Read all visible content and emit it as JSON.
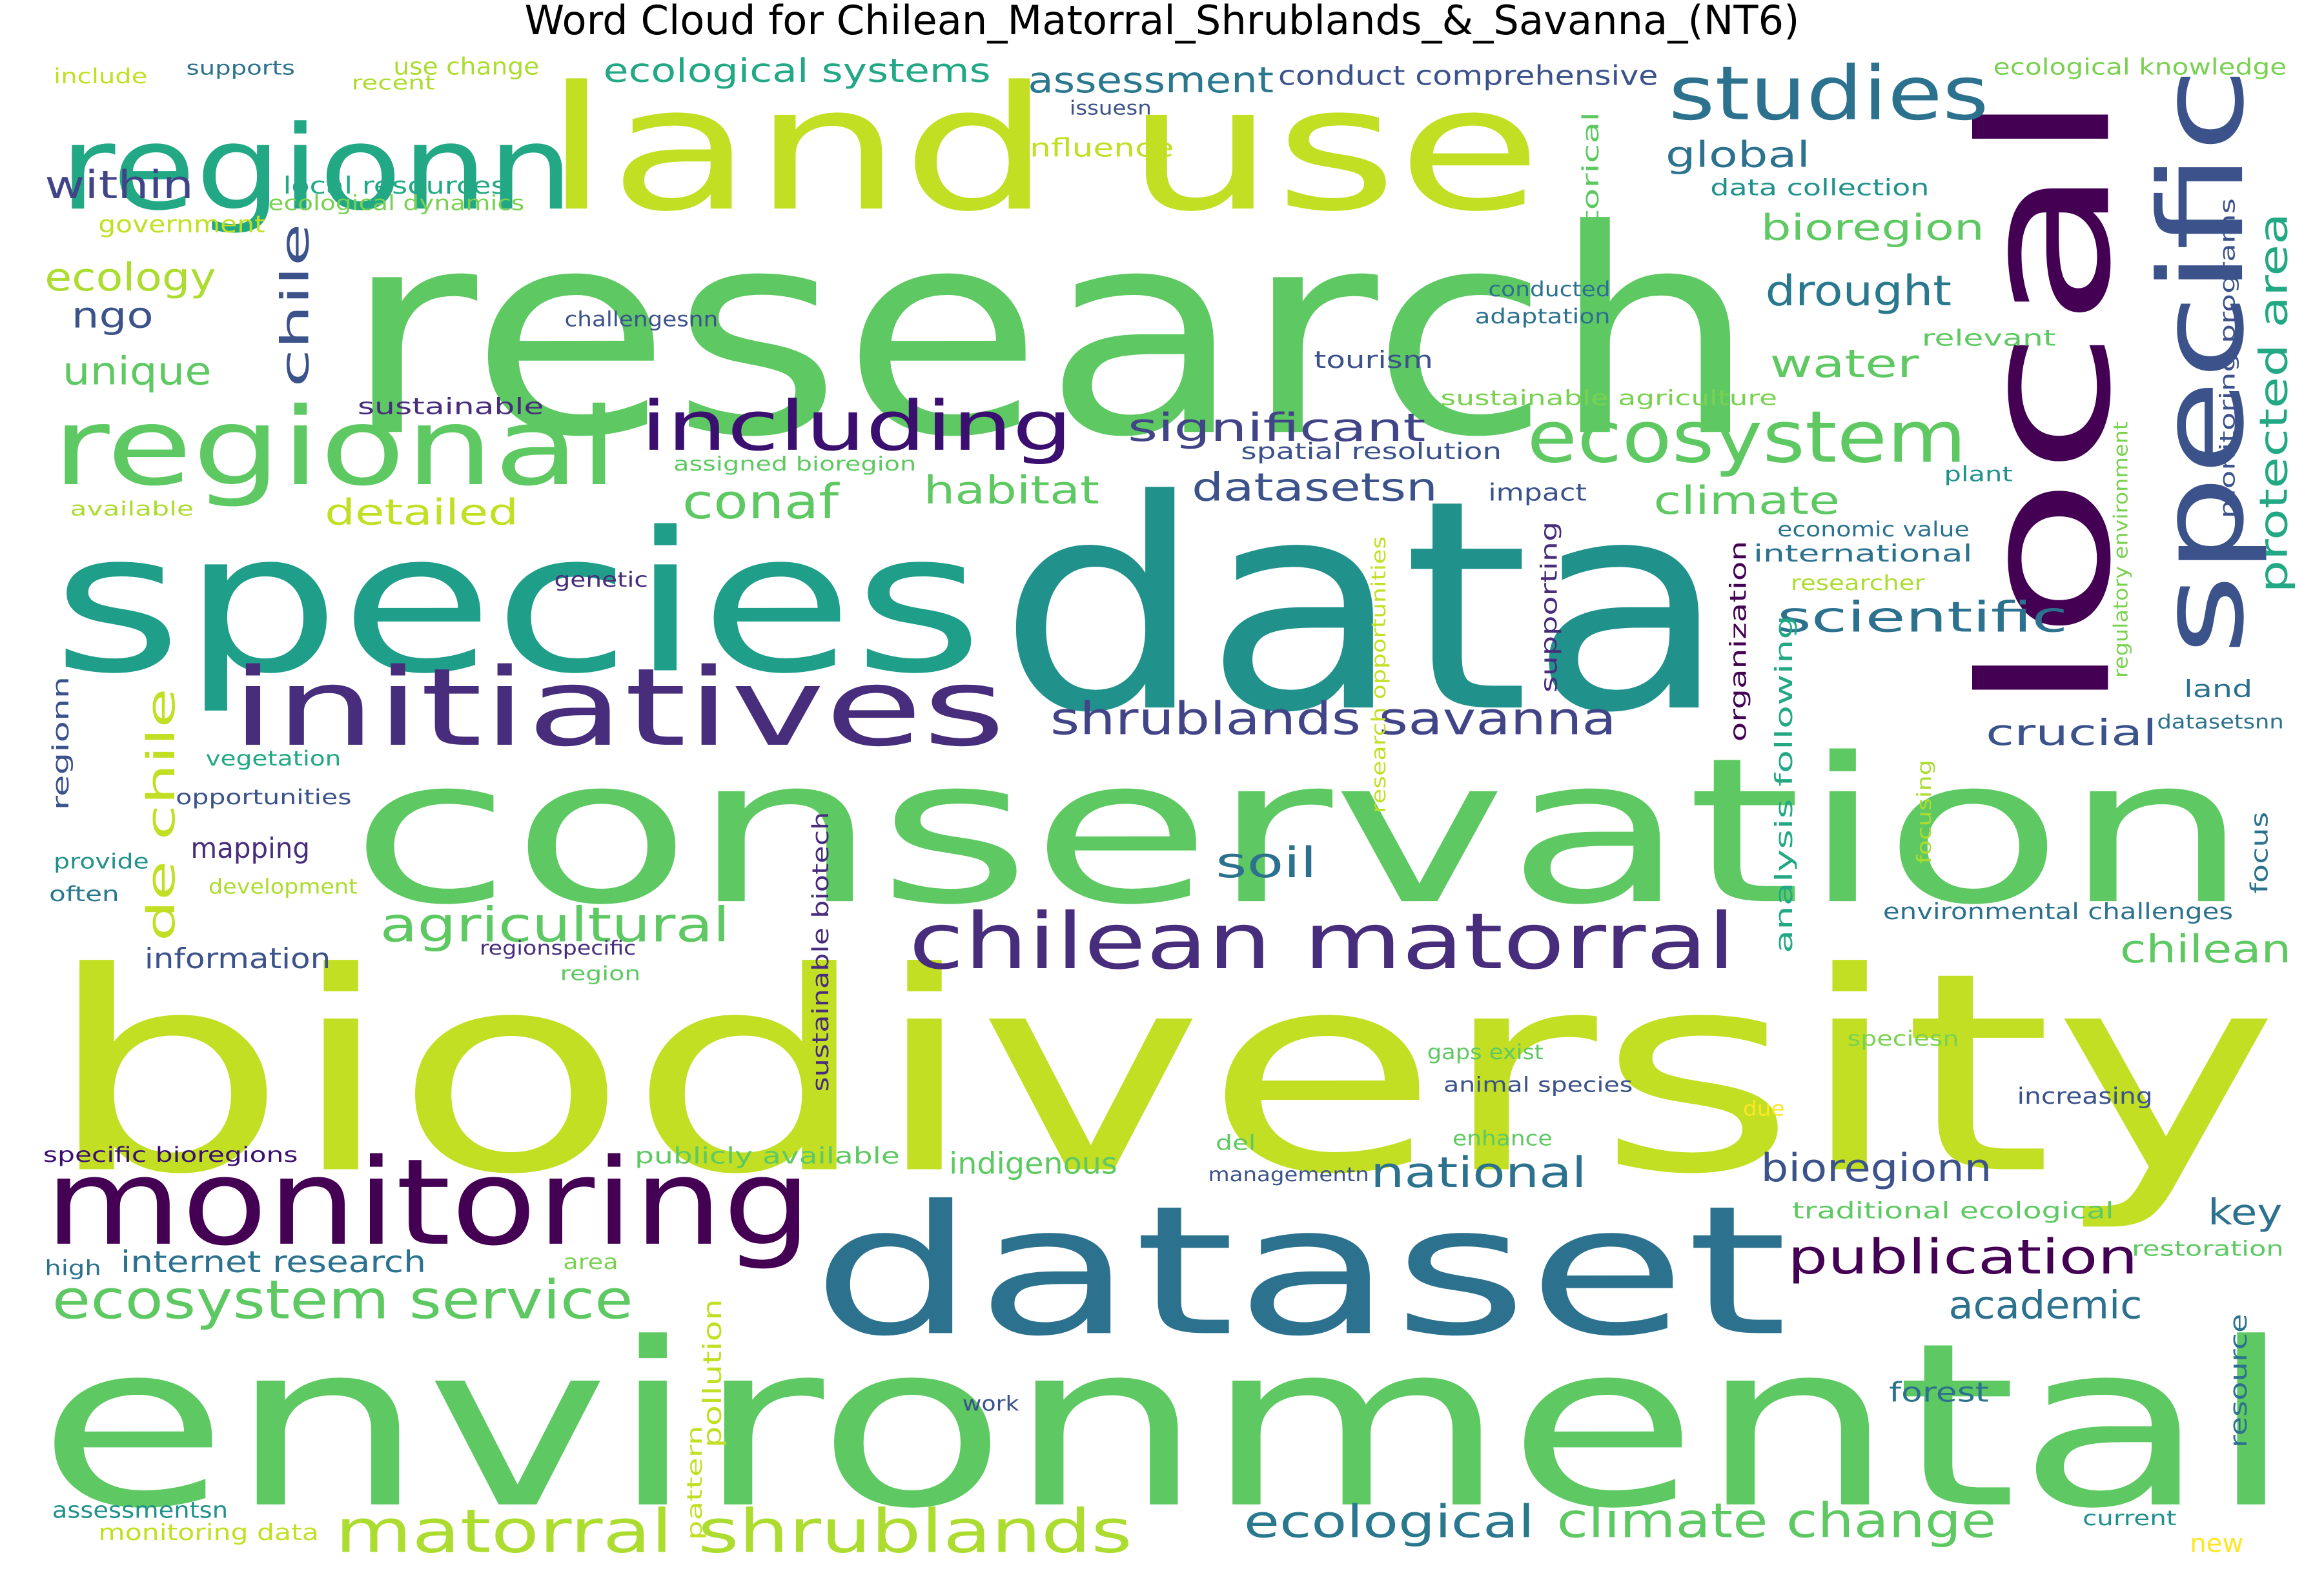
{
  "title": "Word Cloud for Chilean_Matorral_Shrublands_&_Savanna_(NT6)",
  "words": [
    {
      "text": "biodiversity",
      "color": "#c2df23"
    },
    {
      "text": "research",
      "color": "#5ec962"
    },
    {
      "text": "conservation",
      "color": "#5ec962"
    },
    {
      "text": "environmental",
      "color": "#5ec962"
    },
    {
      "text": "data",
      "color": "#21918c"
    },
    {
      "text": "species",
      "color": "#1f9e89"
    },
    {
      "text": "land use",
      "color": "#c2df23"
    },
    {
      "text": "local",
      "color": "#440154"
    },
    {
      "text": "dataset",
      "color": "#2c728e"
    },
    {
      "text": "monitoring",
      "color": "#440154"
    },
    {
      "text": "regionn",
      "color": "#22a884"
    },
    {
      "text": "regional",
      "color": "#5ec962"
    },
    {
      "text": "initiatives",
      "color": "#472d7b"
    },
    {
      "text": "specific",
      "color": "#3b528b"
    },
    {
      "text": "studies",
      "color": "#2c728e"
    },
    {
      "text": "ecosystem",
      "color": "#5ec962"
    },
    {
      "text": "including",
      "color": "#3b0f70"
    },
    {
      "text": "chilean matorral",
      "color": "#472d7b"
    },
    {
      "text": "matorral shrublands",
      "color": "#addc30"
    },
    {
      "text": "ecosystem service",
      "color": "#5ec962"
    },
    {
      "text": "shrublands savanna",
      "color": "#414487"
    },
    {
      "text": "agricultural",
      "color": "#5ec962"
    },
    {
      "text": "protected area",
      "color": "#22a884"
    },
    {
      "text": "ecological",
      "color": "#2a788e"
    },
    {
      "text": "climate change",
      "color": "#5ec962"
    },
    {
      "text": "publication",
      "color": "#440154"
    },
    {
      "text": "national",
      "color": "#2c728e"
    },
    {
      "text": "conaf",
      "color": "#5ec962"
    },
    {
      "text": "significant",
      "color": "#414487"
    },
    {
      "text": "datasetsn",
      "color": "#3b528b"
    },
    {
      "text": "climate",
      "color": "#5ec962"
    },
    {
      "text": "drought",
      "color": "#2a788e"
    },
    {
      "text": "water",
      "color": "#5ec962"
    },
    {
      "text": "scientific",
      "color": "#2c728e"
    },
    {
      "text": "bioregion",
      "color": "#5ec962"
    },
    {
      "text": "global",
      "color": "#2c728e"
    },
    {
      "text": "assessment",
      "color": "#2a788e"
    },
    {
      "text": "ecological systems",
      "color": "#22a884"
    },
    {
      "text": "habitat",
      "color": "#5ec962"
    },
    {
      "text": "detailed",
      "color": "#c2df23"
    },
    {
      "text": "bioregionn",
      "color": "#3b528b"
    },
    {
      "text": "academic",
      "color": "#2c728e"
    },
    {
      "text": "crucial",
      "color": "#3b528b"
    },
    {
      "text": "chilean",
      "color": "#5ec962"
    },
    {
      "text": "soil",
      "color": "#2c728e"
    },
    {
      "text": "key",
      "color": "#2c728e"
    },
    {
      "text": "de chile",
      "color": "#c2df23"
    },
    {
      "text": "chile",
      "color": "#3b528b"
    },
    {
      "text": "within",
      "color": "#414487"
    },
    {
      "text": "ecology",
      "color": "#addc30"
    },
    {
      "text": "ngo",
      "color": "#3b528b"
    },
    {
      "text": "unique",
      "color": "#5ec962"
    },
    {
      "text": "indigenous",
      "color": "#5ec962"
    },
    {
      "text": "internet research",
      "color": "#2c728e"
    },
    {
      "text": "information",
      "color": "#3b528b"
    },
    {
      "text": "mapping",
      "color": "#472d7b"
    },
    {
      "text": "forest",
      "color": "#2c728e"
    },
    {
      "text": "conduct comprehensive",
      "color": "#3b528b"
    },
    {
      "text": "use change",
      "color": "#addc30"
    },
    {
      "text": "influence",
      "color": "#c2df23"
    },
    {
      "text": "local resources",
      "color": "#22a884"
    },
    {
      "text": "ecological dynamics",
      "color": "#7ad151"
    },
    {
      "text": "government",
      "color": "#c2df23"
    },
    {
      "text": "data collection",
      "color": "#21918c"
    },
    {
      "text": "ecological knowledge",
      "color": "#7ad151"
    },
    {
      "text": "tourism",
      "color": "#3b528b"
    },
    {
      "text": "sustainable",
      "color": "#472d7b"
    },
    {
      "text": "sustainable agriculture",
      "color": "#7ad151"
    },
    {
      "text": "spatial resolution",
      "color": "#3b528b"
    },
    {
      "text": "assigned bioregion",
      "color": "#5ec962"
    },
    {
      "text": "impact",
      "color": "#3b528b"
    },
    {
      "text": "economic value",
      "color": "#2c728e"
    },
    {
      "text": "international",
      "color": "#2c728e"
    },
    {
      "text": "researcher",
      "color": "#addc30"
    },
    {
      "text": "genetic",
      "color": "#472d7b"
    },
    {
      "text": "vegetation",
      "color": "#22a884"
    },
    {
      "text": "opportunities",
      "color": "#3b528b"
    },
    {
      "text": "provide",
      "color": "#21918c"
    },
    {
      "text": "often",
      "color": "#2a788e"
    },
    {
      "text": "development",
      "color": "#addc30"
    },
    {
      "text": "regionspecific",
      "color": "#472d7b"
    },
    {
      "text": "region",
      "color": "#5ec962"
    },
    {
      "text": "environmental challenges",
      "color": "#2c728e"
    },
    {
      "text": "gaps exist",
      "color": "#5ec962"
    },
    {
      "text": "animal species",
      "color": "#3b528b"
    },
    {
      "text": "speciesn",
      "color": "#7ad151"
    },
    {
      "text": "increasing",
      "color": "#3b528b"
    },
    {
      "text": "enhance",
      "color": "#5ec962"
    },
    {
      "text": "due",
      "color": "#fde725"
    },
    {
      "text": "del",
      "color": "#5ec962"
    },
    {
      "text": "managementn",
      "color": "#3b528b"
    },
    {
      "text": "publicly available",
      "color": "#5ec962"
    },
    {
      "text": "specific bioregions",
      "color": "#3b0f70"
    },
    {
      "text": "traditional ecological",
      "color": "#5ec962"
    },
    {
      "text": "restoration",
      "color": "#5ec962"
    },
    {
      "text": "high",
      "color": "#2c728e"
    },
    {
      "text": "area",
      "color": "#7ad151"
    },
    {
      "text": "work",
      "color": "#3b528b"
    },
    {
      "text": "assessmentsn",
      "color": "#21918c"
    },
    {
      "text": "monitoring data",
      "color": "#c2df23"
    },
    {
      "text": "current",
      "color": "#21918c"
    },
    {
      "text": "new",
      "color": "#fde725"
    },
    {
      "text": "include",
      "color": "#c2df23"
    },
    {
      "text": "supports",
      "color": "#2c728e"
    },
    {
      "text": "recent",
      "color": "#addc30"
    },
    {
      "text": "issuesn",
      "color": "#3b528b"
    },
    {
      "text": "conducted",
      "color": "#2c728e"
    },
    {
      "text": "adaptation",
      "color": "#2c728e"
    },
    {
      "text": "challengesnn",
      "color": "#3b528b"
    },
    {
      "text": "relevant",
      "color": "#5ec962"
    },
    {
      "text": "plant",
      "color": "#21918c"
    },
    {
      "text": "available",
      "color": "#addc30"
    },
    {
      "text": "land",
      "color": "#2c728e"
    },
    {
      "text": "datasetsnn",
      "color": "#2c728e"
    },
    {
      "text": "historical",
      "color": "#5ec962"
    },
    {
      "text": "supporting",
      "color": "#472d7b"
    },
    {
      "text": "organization",
      "color": "#440154"
    },
    {
      "text": "analysis following",
      "color": "#22a884"
    },
    {
      "text": "research opportunities",
      "color": "#c2df23"
    },
    {
      "text": "regulatory environment",
      "color": "#7ad151"
    },
    {
      "text": "monitoring programs",
      "color": "#3b528b"
    },
    {
      "text": "focusing",
      "color": "#addc30"
    },
    {
      "text": "focus",
      "color": "#2c728e"
    },
    {
      "text": "sustainable biotech",
      "color": "#472d7b"
    },
    {
      "text": "regionn",
      "color": "#3b528b"
    },
    {
      "text": "pollution",
      "color": "#c2df23"
    },
    {
      "text": "pattern",
      "color": "#c2df23"
    },
    {
      "text": "resource",
      "color": "#2c728e"
    }
  ]
}
